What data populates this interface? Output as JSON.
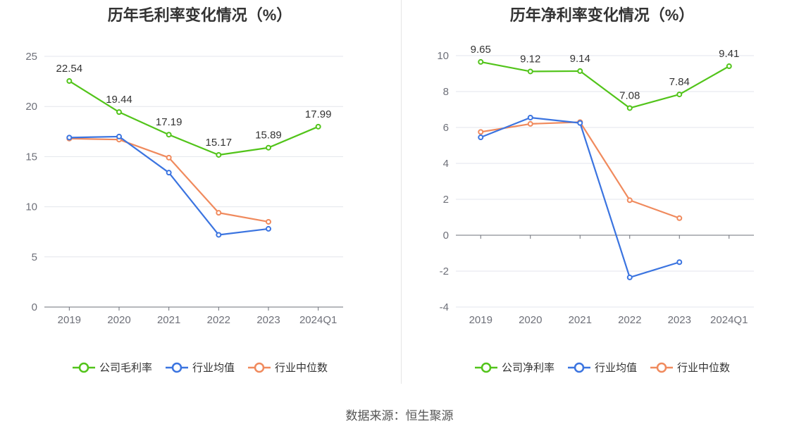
{
  "chart_data": [
    {
      "type": "line",
      "title": "历年毛利率变化情况（%）",
      "categories": [
        "2019",
        "2020",
        "2021",
        "2022",
        "2023",
        "2024Q1"
      ],
      "ylim": [
        0,
        25
      ],
      "yticks": [
        0,
        5,
        10,
        15,
        20,
        25
      ],
      "grid": true,
      "legend_position": "bottom",
      "series": [
        {
          "name": "公司毛利率",
          "color": "#52c41a",
          "values": [
            22.54,
            19.44,
            17.19,
            15.17,
            15.89,
            17.99
          ],
          "labels": [
            "22.54",
            "19.44",
            "17.19",
            "15.17",
            "15.89",
            "17.99"
          ]
        },
        {
          "name": "行业均值",
          "color": "#3b74e0",
          "values": [
            16.9,
            17.0,
            13.4,
            7.2,
            7.8,
            null
          ]
        },
        {
          "name": "行业中位数",
          "color": "#f08a5d",
          "values": [
            16.8,
            16.7,
            14.9,
            9.4,
            8.5,
            null
          ]
        }
      ]
    },
    {
      "type": "line",
      "title": "历年净利率变化情况（%）",
      "categories": [
        "2019",
        "2020",
        "2021",
        "2022",
        "2023",
        "2024Q1"
      ],
      "ylim": [
        -4,
        10
      ],
      "yticks": [
        -4,
        -2,
        0,
        2,
        4,
        6,
        8,
        10
      ],
      "grid": true,
      "legend_position": "bottom",
      "series": [
        {
          "name": "公司净利率",
          "color": "#52c41a",
          "values": [
            9.65,
            9.12,
            9.14,
            7.08,
            7.84,
            9.41
          ],
          "labels": [
            "9.65",
            "9.12",
            "9.14",
            "7.08",
            "7.84",
            "9.41"
          ]
        },
        {
          "name": "行业均值",
          "color": "#3b74e0",
          "values": [
            5.45,
            6.55,
            6.25,
            -2.35,
            -1.5,
            null
          ]
        },
        {
          "name": "行业中位数",
          "color": "#f08a5d",
          "values": [
            5.75,
            6.2,
            6.3,
            1.95,
            0.95,
            null
          ]
        }
      ]
    }
  ],
  "footer": {
    "source": "数据来源：恒生聚源"
  }
}
